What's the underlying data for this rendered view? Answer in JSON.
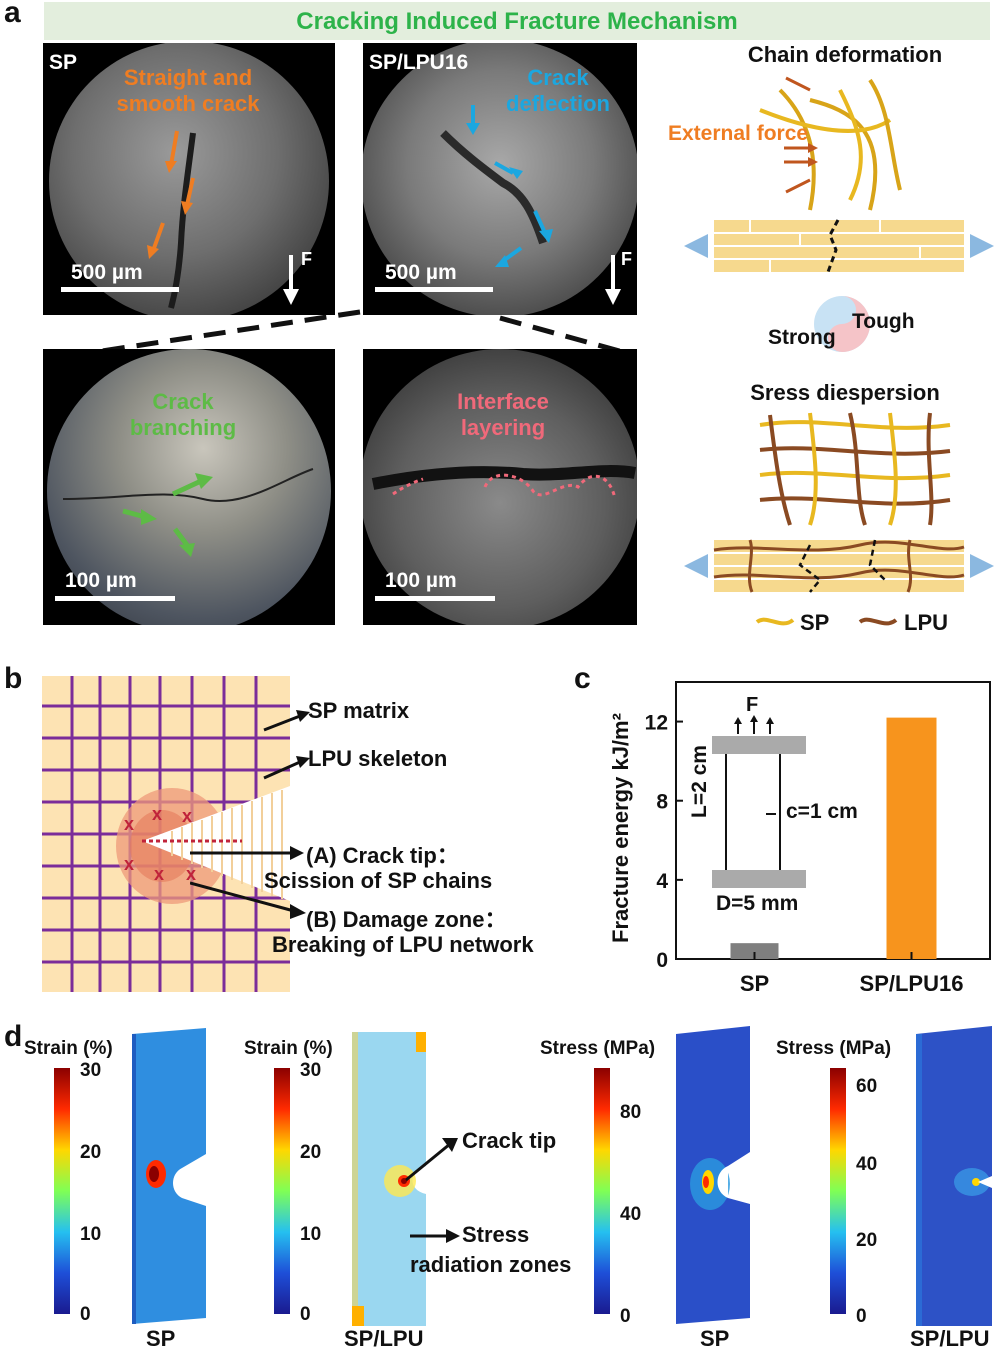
{
  "panel_a": {
    "label": "a",
    "banner": "Cracking Induced Fracture Mechanism",
    "images": [
      {
        "tag": "SP",
        "annotation_line1": "Straight and",
        "annotation_line2": "smooth crack",
        "scale": "500 µm",
        "force": "F"
      },
      {
        "tag": "SP/LPU16",
        "annotation_line1": "Crack",
        "annotation_line2": "deflection",
        "scale": "500 µm",
        "force": "F"
      },
      {
        "annotation_line1": "Crack",
        "annotation_line2": "branching",
        "scale": "100 µm"
      },
      {
        "annotation_line1": "Interface",
        "annotation_line2": "layering",
        "scale": "100 µm"
      }
    ],
    "schematic": {
      "chain_title": "Chain deformation",
      "external_force": "External force",
      "strong": "Strong",
      "tough": "Tough",
      "dispersion_title": "Sress diespersion",
      "legend_sp": "SP",
      "legend_lpu": "LPU"
    },
    "colors": {
      "orange": "#ef7d22",
      "blue": "#1ba7e0",
      "green": "#5dbb46",
      "pink": "#f0697a",
      "sp": "#e8b820",
      "lpu": "#8a4a22"
    }
  },
  "panel_b": {
    "label": "b",
    "sp_matrix": "SP matrix",
    "lpu_skeleton": "LPU skeleton",
    "crack_tip_line1": "(A)  Crack tip：",
    "crack_tip_line2": "Scission of SP chains",
    "damage_line1": "(B)  Damage zone：",
    "damage_line2": "Breaking of LPU network",
    "colors": {
      "grid": "#7b2c9a",
      "matrix": "#fde3b3",
      "zone": "#ee9a7a"
    }
  },
  "panel_c": {
    "label": "c",
    "inset": {
      "force": "F",
      "length": "L=2 cm",
      "crack": "c=1 cm",
      "width": "D=5 mm"
    }
  },
  "chart_data": {
    "type": "bar",
    "categories": [
      "SP",
      "SP/LPU16"
    ],
    "values": [
      0.8,
      12.2
    ],
    "ylabel": "Fracture energy kJ/m²",
    "ylim": [
      0,
      14
    ],
    "yticks": [
      0,
      4,
      8,
      12
    ],
    "colors": [
      "#7f7f7f",
      "#f7941d"
    ]
  },
  "panel_d": {
    "label": "d",
    "maps": [
      {
        "title": "Strain (%)",
        "ticks": [
          "30",
          "20",
          "10",
          "0"
        ],
        "sample": "SP"
      },
      {
        "title": "Strain (%)",
        "ticks": [
          "30",
          "20",
          "10",
          "0"
        ],
        "sample": "SP/LPU"
      },
      {
        "title": "Stress (MPa)",
        "ticks": [
          "80",
          "40",
          "0"
        ],
        "sample": "SP"
      },
      {
        "title": "Stress (MPa)",
        "ticks": [
          "60",
          "40",
          "20",
          "0"
        ],
        "sample": "SP/LPU"
      }
    ],
    "crack_tip": "Crack tip",
    "stress_line1": "Stress",
    "stress_line2": "radiation zones"
  }
}
